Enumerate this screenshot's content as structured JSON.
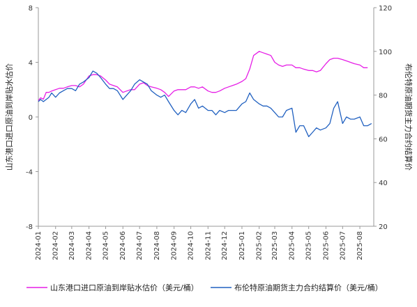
{
  "chart_data": {
    "type": "line",
    "title": "",
    "x_ticks": [
      "2024-01",
      "2024-02",
      "2024-03",
      "2024-04",
      "2024-05",
      "2024-06",
      "2024-07",
      "2024-08",
      "2024-09",
      "2024-10",
      "2024-11",
      "2024-12",
      "2025-01",
      "2025-02",
      "2025-03",
      "2025-04",
      "2025-05",
      "2025-06",
      "2025-07",
      "2025-08"
    ],
    "y_left": {
      "label": "山东港口进口原油到岸贴水估价",
      "min": -8,
      "max": 8,
      "ticks": [
        -8,
        -4,
        0,
        4,
        8
      ]
    },
    "y_right": {
      "label": "布伦特原油期货主力合约结算价",
      "min": 20,
      "max": 120,
      "ticks": [
        20,
        40,
        60,
        80,
        100,
        120
      ]
    },
    "grid": false,
    "legend_position": "bottom",
    "series": [
      {
        "name": "山东港口进口原油到岸贴水估价（美元/桶）",
        "axis": "left",
        "color": "#e61ee6",
        "points": [
          [
            "2024-01-01",
            1.2
          ],
          [
            "2024-01-05",
            1.4
          ],
          [
            "2024-01-10",
            1.3
          ],
          [
            "2024-01-15",
            1.8
          ],
          [
            "2024-01-20",
            1.8
          ],
          [
            "2024-01-25",
            1.9
          ],
          [
            "2024-02-01",
            2.0
          ],
          [
            "2024-02-08",
            2.1
          ],
          [
            "2024-02-15",
            2.1
          ],
          [
            "2024-02-22",
            2.2
          ],
          [
            "2024-03-01",
            2.3
          ],
          [
            "2024-03-08",
            2.3
          ],
          [
            "2024-03-15",
            2.2
          ],
          [
            "2024-03-22",
            2.4
          ],
          [
            "2024-04-01",
            3.0
          ],
          [
            "2024-04-08",
            3.1
          ],
          [
            "2024-04-15",
            3.1
          ],
          [
            "2024-04-22",
            3.0
          ],
          [
            "2024-05-01",
            2.7
          ],
          [
            "2024-05-08",
            2.4
          ],
          [
            "2024-05-15",
            2.3
          ],
          [
            "2024-05-22",
            2.2
          ],
          [
            "2024-06-01",
            1.8
          ],
          [
            "2024-06-08",
            1.9
          ],
          [
            "2024-06-15",
            2.0
          ],
          [
            "2024-06-22",
            2.0
          ],
          [
            "2024-07-01",
            2.4
          ],
          [
            "2024-07-08",
            2.5
          ],
          [
            "2024-07-15",
            2.3
          ],
          [
            "2024-07-22",
            2.2
          ],
          [
            "2024-08-01",
            2.1
          ],
          [
            "2024-08-08",
            2.0
          ],
          [
            "2024-08-15",
            1.8
          ],
          [
            "2024-08-22",
            1.5
          ],
          [
            "2024-09-01",
            1.9
          ],
          [
            "2024-09-08",
            2.0
          ],
          [
            "2024-09-15",
            2.0
          ],
          [
            "2024-09-22",
            2.0
          ],
          [
            "2024-10-01",
            2.2
          ],
          [
            "2024-10-08",
            2.2
          ],
          [
            "2024-10-15",
            2.1
          ],
          [
            "2024-10-22",
            2.2
          ],
          [
            "2024-11-01",
            1.9
          ],
          [
            "2024-11-08",
            1.8
          ],
          [
            "2024-11-15",
            1.8
          ],
          [
            "2024-11-22",
            1.9
          ],
          [
            "2024-12-01",
            2.1
          ],
          [
            "2024-12-08",
            2.2
          ],
          [
            "2024-12-15",
            2.3
          ],
          [
            "2024-12-22",
            2.4
          ],
          [
            "2025-01-01",
            2.6
          ],
          [
            "2025-01-08",
            2.8
          ],
          [
            "2025-01-15",
            3.5
          ],
          [
            "2025-01-22",
            4.5
          ],
          [
            "2025-02-01",
            4.8
          ],
          [
            "2025-02-08",
            4.7
          ],
          [
            "2025-02-15",
            4.6
          ],
          [
            "2025-02-22",
            4.5
          ],
          [
            "2025-03-01",
            4.0
          ],
          [
            "2025-03-08",
            3.8
          ],
          [
            "2025-03-15",
            3.7
          ],
          [
            "2025-03-22",
            3.8
          ],
          [
            "2025-04-01",
            3.8
          ],
          [
            "2025-04-08",
            3.6
          ],
          [
            "2025-04-15",
            3.6
          ],
          [
            "2025-04-22",
            3.5
          ],
          [
            "2025-05-01",
            3.4
          ],
          [
            "2025-05-08",
            3.4
          ],
          [
            "2025-05-15",
            3.3
          ],
          [
            "2025-05-22",
            3.4
          ],
          [
            "2025-06-01",
            3.9
          ],
          [
            "2025-06-08",
            4.2
          ],
          [
            "2025-06-15",
            4.3
          ],
          [
            "2025-06-22",
            4.3
          ],
          [
            "2025-07-01",
            4.2
          ],
          [
            "2025-07-08",
            4.1
          ],
          [
            "2025-07-15",
            4.0
          ],
          [
            "2025-07-22",
            3.9
          ],
          [
            "2025-08-01",
            3.8
          ],
          [
            "2025-08-08",
            3.6
          ],
          [
            "2025-08-15",
            3.6
          ]
        ]
      },
      {
        "name": "布伦特原油期货主力合约结算价（美元/桶）",
        "axis": "right",
        "color": "#2060c0",
        "points": [
          [
            "2024-01-01",
            77
          ],
          [
            "2024-01-05",
            78
          ],
          [
            "2024-01-10",
            77
          ],
          [
            "2024-01-15",
            78
          ],
          [
            "2024-01-20",
            79
          ],
          [
            "2024-01-25",
            81
          ],
          [
            "2024-02-01",
            79
          ],
          [
            "2024-02-08",
            81
          ],
          [
            "2024-02-15",
            82
          ],
          [
            "2024-02-22",
            83
          ],
          [
            "2024-03-01",
            83
          ],
          [
            "2024-03-08",
            82
          ],
          [
            "2024-03-15",
            85
          ],
          [
            "2024-03-22",
            86
          ],
          [
            "2024-04-01",
            88
          ],
          [
            "2024-04-08",
            91
          ],
          [
            "2024-04-15",
            90
          ],
          [
            "2024-04-22",
            88
          ],
          [
            "2024-05-01",
            85
          ],
          [
            "2024-05-08",
            83
          ],
          [
            "2024-05-15",
            83
          ],
          [
            "2024-05-22",
            82
          ],
          [
            "2024-06-01",
            78
          ],
          [
            "2024-06-08",
            80
          ],
          [
            "2024-06-15",
            82
          ],
          [
            "2024-06-22",
            85
          ],
          [
            "2024-07-01",
            87
          ],
          [
            "2024-07-08",
            86
          ],
          [
            "2024-07-15",
            85
          ],
          [
            "2024-07-22",
            82
          ],
          [
            "2024-08-01",
            80
          ],
          [
            "2024-08-08",
            79
          ],
          [
            "2024-08-15",
            80
          ],
          [
            "2024-08-22",
            77
          ],
          [
            "2024-09-01",
            73
          ],
          [
            "2024-09-08",
            71
          ],
          [
            "2024-09-15",
            73
          ],
          [
            "2024-09-22",
            72
          ],
          [
            "2024-10-01",
            76
          ],
          [
            "2024-10-08",
            78
          ],
          [
            "2024-10-15",
            74
          ],
          [
            "2024-10-22",
            75
          ],
          [
            "2024-11-01",
            73
          ],
          [
            "2024-11-08",
            73
          ],
          [
            "2024-11-15",
            71
          ],
          [
            "2024-11-22",
            73
          ],
          [
            "2024-12-01",
            72
          ],
          [
            "2024-12-08",
            73
          ],
          [
            "2024-12-15",
            73
          ],
          [
            "2024-12-22",
            73
          ],
          [
            "2025-01-01",
            76
          ],
          [
            "2025-01-08",
            77
          ],
          [
            "2025-01-15",
            81
          ],
          [
            "2025-01-22",
            78
          ],
          [
            "2025-02-01",
            76
          ],
          [
            "2025-02-08",
            75
          ],
          [
            "2025-02-15",
            75
          ],
          [
            "2025-02-22",
            74
          ],
          [
            "2025-03-01",
            72
          ],
          [
            "2025-03-08",
            70
          ],
          [
            "2025-03-15",
            70
          ],
          [
            "2025-03-22",
            73
          ],
          [
            "2025-04-01",
            74
          ],
          [
            "2025-04-08",
            63
          ],
          [
            "2025-04-15",
            66
          ],
          [
            "2025-04-22",
            66
          ],
          [
            "2025-05-01",
            61
          ],
          [
            "2025-05-08",
            63
          ],
          [
            "2025-05-15",
            65
          ],
          [
            "2025-05-22",
            64
          ],
          [
            "2025-06-01",
            65
          ],
          [
            "2025-06-08",
            67
          ],
          [
            "2025-06-15",
            74
          ],
          [
            "2025-06-22",
            77
          ],
          [
            "2025-07-01",
            67
          ],
          [
            "2025-07-08",
            70
          ],
          [
            "2025-07-15",
            69
          ],
          [
            "2025-07-22",
            69
          ],
          [
            "2025-08-01",
            70
          ],
          [
            "2025-08-08",
            66
          ],
          [
            "2025-08-15",
            66
          ],
          [
            "2025-08-22",
            67
          ]
        ]
      }
    ]
  }
}
